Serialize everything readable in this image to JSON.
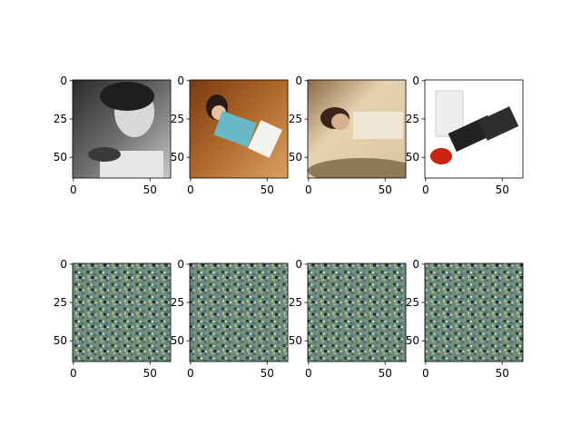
{
  "chart_data": {
    "type": "image-grid",
    "rows": 2,
    "cols": 4,
    "panels": [
      {
        "row": 0,
        "col": 0,
        "content": "grayscale photo of girl with pet on shoulder",
        "xticks": [
          0,
          50
        ],
        "yticks": [
          0,
          25,
          50
        ],
        "xlim": [
          -0.5,
          63.5
        ],
        "ylim": [
          63.5,
          -0.5
        ]
      },
      {
        "row": 0,
        "col": 1,
        "content": "photo of child lying on wooden floor holding paper",
        "xticks": [
          0,
          50
        ],
        "yticks": [
          0,
          25,
          50
        ],
        "xlim": [
          -0.5,
          63.5
        ],
        "ylim": [
          63.5,
          -0.5
        ]
      },
      {
        "row": 0,
        "col": 2,
        "content": "photo of woman lying down in beige tones",
        "xticks": [
          0,
          50
        ],
        "yticks": [
          0,
          25,
          50
        ],
        "xlim": [
          -0.5,
          63.5
        ],
        "ylim": [
          63.5,
          -0.5
        ]
      },
      {
        "row": 0,
        "col": 3,
        "content": "product photo of red lipstick on white background",
        "xticks": [
          0,
          50
        ],
        "yticks": [
          0,
          25,
          50
        ],
        "xlim": [
          -0.5,
          63.5
        ],
        "ylim": [
          63.5,
          -0.5
        ]
      },
      {
        "row": 1,
        "col": 0,
        "content": "repeating tiled noise pattern",
        "xticks": [
          0,
          50
        ],
        "yticks": [
          0,
          25,
          50
        ],
        "xlim": [
          -0.5,
          63.5
        ],
        "ylim": [
          63.5,
          -0.5
        ]
      },
      {
        "row": 1,
        "col": 1,
        "content": "repeating tiled noise pattern",
        "xticks": [
          0,
          50
        ],
        "yticks": [
          0,
          25,
          50
        ],
        "xlim": [
          -0.5,
          63.5
        ],
        "ylim": [
          63.5,
          -0.5
        ]
      },
      {
        "row": 1,
        "col": 2,
        "content": "repeating tiled noise pattern",
        "xticks": [
          0,
          50
        ],
        "yticks": [
          0,
          25,
          50
        ],
        "xlim": [
          -0.5,
          63.5
        ],
        "ylim": [
          63.5,
          -0.5
        ]
      },
      {
        "row": 1,
        "col": 3,
        "content": "repeating tiled noise pattern",
        "xticks": [
          0,
          50
        ],
        "yticks": [
          0,
          25,
          50
        ],
        "xlim": [
          -0.5,
          63.5
        ],
        "ylim": [
          63.5,
          -0.5
        ]
      }
    ],
    "grid": false,
    "colors": {
      "axes": "#000000",
      "background": "#ffffff",
      "noise_base": "#6e8a78"
    }
  }
}
